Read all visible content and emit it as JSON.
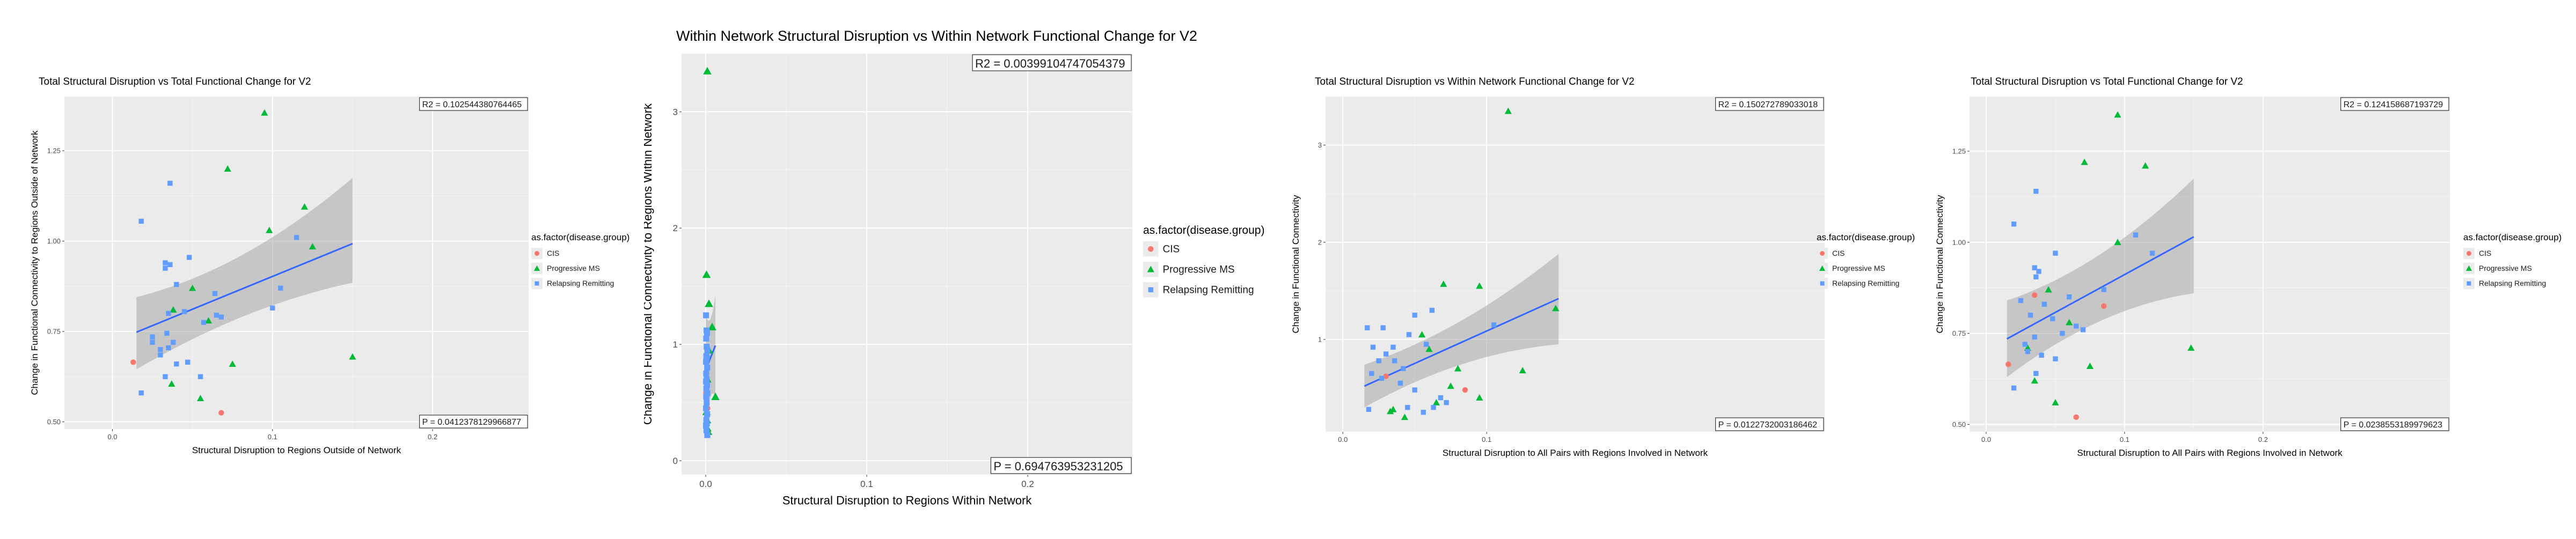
{
  "chart_data": [
    {
      "type": "scatter",
      "title": "Total Structural Disruption vs Total Functional Change for V2",
      "xlabel": "Structural Disruption to Regions Outside of Network",
      "ylabel": "Change in Functional Connectivity to Regions Outside of Network",
      "xlim": [
        -0.03,
        0.26
      ],
      "ylim": [
        0.48,
        1.4
      ],
      "xticks": [
        0.0,
        0.1,
        0.2
      ],
      "xtick_labels": [
        "0.0",
        "0.1",
        "0.2"
      ],
      "yticks": [
        0.5,
        0.75,
        1.0,
        1.25
      ],
      "ytick_labels": [
        "0.50",
        "0.75",
        "1.00",
        "1.25"
      ],
      "r2_text": "R2 =  0.102544380764465",
      "p_text": "P =  0.0412378129966877",
      "fit": {
        "x": [
          0.015,
          0.15
        ],
        "y": [
          0.748,
          0.993
        ],
        "ci_lower": [
          0.645,
          0.885
        ],
        "ci_upper": [
          0.845,
          1.175
        ]
      },
      "legend_position": "right",
      "legend_title": "as.factor(disease.group)",
      "series": [
        {
          "name": "CIS",
          "shape": "circle",
          "color": "#F8766D",
          "points": [
            [
              0.013,
              0.665
            ],
            [
              0.068,
              0.525
            ]
          ]
        },
        {
          "name": "Progressive MS",
          "shape": "triangle",
          "color": "#00BA38",
          "points": [
            [
              0.095,
              1.355
            ],
            [
              0.072,
              1.2
            ],
            [
              0.12,
              1.095
            ],
            [
              0.098,
              1.03
            ],
            [
              0.125,
              0.985
            ],
            [
              0.15,
              0.68
            ],
            [
              0.075,
              0.66
            ],
            [
              0.037,
              0.605
            ],
            [
              0.055,
              0.565
            ],
            [
              0.038,
              0.81
            ],
            [
              0.05,
              0.87
            ],
            [
              0.06,
              0.78
            ]
          ]
        },
        {
          "name": "Relapsing Remitting",
          "shape": "square",
          "color": "#619CFF",
          "points": [
            [
              0.036,
              1.16
            ],
            [
              0.018,
              1.055
            ],
            [
              0.048,
              0.955
            ],
            [
              0.033,
              0.94
            ],
            [
              0.036,
              0.935
            ],
            [
              0.033,
              0.925
            ],
            [
              0.04,
              0.88
            ],
            [
              0.064,
              0.855
            ],
            [
              0.035,
              0.8
            ],
            [
              0.045,
              0.805
            ],
            [
              0.065,
              0.795
            ],
            [
              0.057,
              0.775
            ],
            [
              0.068,
              0.79
            ],
            [
              0.1,
              0.815
            ],
            [
              0.105,
              0.87
            ],
            [
              0.115,
              1.01
            ],
            [
              0.034,
              0.745
            ],
            [
              0.025,
              0.735
            ],
            [
              0.025,
              0.72
            ],
            [
              0.038,
              0.72
            ],
            [
              0.03,
              0.7
            ],
            [
              0.035,
              0.705
            ],
            [
              0.03,
              0.685
            ],
            [
              0.04,
              0.66
            ],
            [
              0.047,
              0.665
            ],
            [
              0.033,
              0.625
            ],
            [
              0.055,
              0.625
            ],
            [
              0.018,
              0.58
            ]
          ]
        }
      ]
    },
    {
      "type": "scatter",
      "title": "Within Network Structural Disruption vs Within Network Functional Change for V2",
      "xlabel": "Structural Disruption to Regions Within Network",
      "ylabel": "Change in Functional Connectivity to Regions Within Network",
      "xlim": [
        -0.015,
        0.265
      ],
      "ylim": [
        -0.12,
        3.5
      ],
      "xticks": [
        0.0,
        0.1,
        0.2
      ],
      "xtick_labels": [
        "0.0",
        "0.1",
        "0.2"
      ],
      "yticks": [
        0,
        1,
        2,
        3
      ],
      "ytick_labels": [
        "0",
        "1",
        "2",
        "3"
      ],
      "r2_text": "R2 =  0.00399104747054379",
      "p_text": "P =  0.694763953231205",
      "fit": {
        "x": [
          0.0,
          0.006
        ],
        "y": [
          0.78,
          0.99
        ],
        "ci_lower": [
          0.3,
          0.55
        ],
        "ci_upper": [
          1.25,
          1.43
        ]
      },
      "legend_position": "right",
      "legend_title": "as.factor(disease.group)",
      "series": [
        {
          "name": "CIS",
          "shape": "circle",
          "color": "#F8766D",
          "points": [
            [
              0.0005,
              0.58
            ],
            [
              0.0008,
              0.45
            ]
          ]
        },
        {
          "name": "Progressive MS",
          "shape": "triangle",
          "color": "#00BA38",
          "points": [
            [
              0.001,
              3.35
            ],
            [
              0.0005,
              1.6
            ],
            [
              0.002,
              1.35
            ],
            [
              0.004,
              1.15
            ],
            [
              0.006,
              0.55
            ],
            [
              0.0005,
              0.42
            ],
            [
              0.0008,
              0.35
            ],
            [
              0.001,
              0.28
            ],
            [
              0.0015,
              0.25
            ],
            [
              0.002,
              0.95
            ],
            [
              0.001,
              0.7
            ]
          ]
        },
        {
          "name": "Relapsing Remitting",
          "shape": "square",
          "color": "#619CFF",
          "points": [
            [
              0.0002,
              1.25
            ],
            [
              0.0005,
              1.12
            ],
            [
              0.0008,
              1.1
            ],
            [
              0.0003,
              1.05
            ],
            [
              0.0006,
              0.98
            ],
            [
              0.001,
              0.95
            ],
            [
              0.0004,
              0.9
            ],
            [
              0.0007,
              0.88
            ],
            [
              0.0002,
              0.85
            ],
            [
              0.0009,
              0.8
            ],
            [
              0.0003,
              0.75
            ],
            [
              0.0006,
              0.7
            ],
            [
              0.0002,
              0.68
            ],
            [
              0.0008,
              0.65
            ],
            [
              0.0004,
              0.62
            ],
            [
              0.001,
              0.58
            ],
            [
              0.0003,
              0.55
            ],
            [
              0.0006,
              0.5
            ],
            [
              0.0002,
              0.45
            ],
            [
              0.0009,
              0.4
            ],
            [
              0.0004,
              0.35
            ],
            [
              0.0007,
              0.32
            ],
            [
              0.0002,
              0.3
            ],
            [
              0.0005,
              0.26
            ],
            [
              0.001,
              0.22
            ]
          ]
        }
      ]
    },
    {
      "type": "scatter",
      "title": "Total Structural Disruption vs Within Network Functional Change for V2",
      "xlabel": "Structural Disruption to All Pairs with Regions Involved in Network",
      "ylabel": "Change in Functional Connectivity",
      "xlim": [
        -0.012,
        0.335
      ],
      "ylim": [
        0.05,
        3.5
      ],
      "xticks": [
        0.0,
        0.1
      ],
      "xtick_labels": [
        "0.0",
        "0.1"
      ],
      "yticks": [
        1,
        2,
        3
      ],
      "ytick_labels": [
        "1",
        "2",
        "3"
      ],
      "r2_text": "R2 =  0.150272789033018",
      "p_text": "P =  0.0122732003186462",
      "fit": {
        "x": [
          0.015,
          0.15
        ],
        "y": [
          0.52,
          1.42
        ],
        "ci_lower": [
          0.3,
          0.95
        ],
        "ci_upper": [
          0.74,
          1.88
        ]
      },
      "legend_position": "right",
      "legend_title": "as.factor(disease.group)",
      "series": [
        {
          "name": "CIS",
          "shape": "circle",
          "color": "#F8766D",
          "points": [
            [
              0.03,
              0.62
            ],
            [
              0.085,
              0.48
            ]
          ]
        },
        {
          "name": "Progressive MS",
          "shape": "triangle",
          "color": "#00BA38",
          "points": [
            [
              0.115,
              3.35
            ],
            [
              0.07,
              1.57
            ],
            [
              0.095,
              1.55
            ],
            [
              0.148,
              1.32
            ],
            [
              0.055,
              1.05
            ],
            [
              0.125,
              0.68
            ],
            [
              0.075,
              0.52
            ],
            [
              0.095,
              0.4
            ],
            [
              0.035,
              0.28
            ],
            [
              0.043,
              0.2
            ],
            [
              0.033,
              0.26
            ],
            [
              0.06,
              0.9
            ],
            [
              0.08,
              0.7
            ],
            [
              0.065,
              0.35
            ]
          ]
        },
        {
          "name": "Relapsing Remitting",
          "shape": "square",
          "color": "#619CFF",
          "points": [
            [
              0.017,
              1.12
            ],
            [
              0.028,
              1.12
            ],
            [
              0.05,
              1.25
            ],
            [
              0.062,
              1.3
            ],
            [
              0.046,
              1.05
            ],
            [
              0.021,
              0.92
            ],
            [
              0.035,
              0.92
            ],
            [
              0.058,
              0.95
            ],
            [
              0.03,
              0.85
            ],
            [
              0.025,
              0.78
            ],
            [
              0.036,
              0.78
            ],
            [
              0.042,
              0.7
            ],
            [
              0.02,
              0.65
            ],
            [
              0.027,
              0.6
            ],
            [
              0.04,
              0.55
            ],
            [
              0.05,
              0.48
            ],
            [
              0.068,
              0.4
            ],
            [
              0.072,
              0.35
            ],
            [
              0.063,
              0.3
            ],
            [
              0.056,
              0.25
            ],
            [
              0.018,
              0.28
            ],
            [
              0.105,
              1.15
            ],
            [
              0.045,
              0.3
            ]
          ]
        }
      ]
    },
    {
      "type": "scatter",
      "title": "Total Structural Disruption vs Total Functional Change for V2",
      "xlabel": "Structural Disruption to All Pairs with Regions Involved in Network",
      "ylabel": "Change in Functional Connectivity",
      "xlim": [
        -0.012,
        0.335
      ],
      "ylim": [
        0.48,
        1.4
      ],
      "xticks": [
        0.0,
        0.1,
        0.2
      ],
      "xtick_labels": [
        "0.0",
        "0.1",
        "0.2"
      ],
      "yticks": [
        0.5,
        0.75,
        1.0,
        1.25
      ],
      "ytick_labels": [
        "0.50",
        "0.75",
        "1.00",
        "1.25"
      ],
      "r2_text": "R2 =  0.124158687193729",
      "p_text": "P =  0.0238553189979623",
      "fit": {
        "x": [
          0.015,
          0.15
        ],
        "y": [
          0.735,
          1.015
        ],
        "ci_lower": [
          0.63,
          0.86
        ],
        "ci_upper": [
          0.84,
          1.175
        ]
      },
      "legend_position": "right",
      "legend_title": "as.factor(disease.group)",
      "series": [
        {
          "name": "CIS",
          "shape": "circle",
          "color": "#F8766D",
          "points": [
            [
              0.016,
              0.665
            ],
            [
              0.085,
              0.825
            ],
            [
              0.065,
              0.52
            ],
            [
              0.035,
              0.855
            ]
          ]
        },
        {
          "name": "Progressive MS",
          "shape": "triangle",
          "color": "#00BA38",
          "points": [
            [
              0.095,
              1.35
            ],
            [
              0.071,
              1.22
            ],
            [
              0.115,
              1.21
            ],
            [
              0.095,
              1.0
            ],
            [
              0.148,
              0.71
            ],
            [
              0.075,
              0.66
            ],
            [
              0.035,
              0.62
            ],
            [
              0.05,
              0.56
            ],
            [
              0.03,
              0.71
            ],
            [
              0.06,
              0.78
            ],
            [
              0.045,
              0.87
            ]
          ]
        },
        {
          "name": "Relapsing Remitting",
          "shape": "square",
          "color": "#619CFF",
          "points": [
            [
              0.036,
              1.14
            ],
            [
              0.02,
              1.05
            ],
            [
              0.05,
              0.97
            ],
            [
              0.035,
              0.93
            ],
            [
              0.038,
              0.92
            ],
            [
              0.036,
              0.905
            ],
            [
              0.025,
              0.84
            ],
            [
              0.042,
              0.83
            ],
            [
              0.06,
              0.85
            ],
            [
              0.085,
              0.87
            ],
            [
              0.108,
              1.02
            ],
            [
              0.12,
              0.97
            ],
            [
              0.032,
              0.8
            ],
            [
              0.048,
              0.79
            ],
            [
              0.065,
              0.77
            ],
            [
              0.07,
              0.76
            ],
            [
              0.055,
              0.75
            ],
            [
              0.035,
              0.74
            ],
            [
              0.028,
              0.72
            ],
            [
              0.03,
              0.7
            ],
            [
              0.04,
              0.69
            ],
            [
              0.05,
              0.68
            ],
            [
              0.02,
              0.6
            ],
            [
              0.036,
              0.64
            ]
          ]
        }
      ]
    }
  ]
}
